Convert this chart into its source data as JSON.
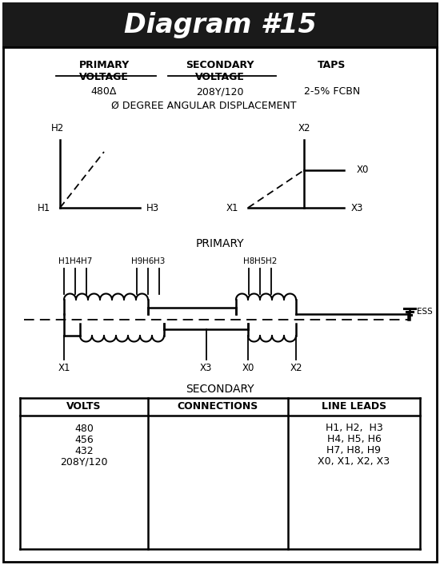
{
  "title": "Diagram #15",
  "title_bg": "#1a1a1a",
  "title_color": "#ffffff",
  "primary_voltage": "480Δ",
  "secondary_voltage": "208Y/120",
  "taps": "2-5% FCBN",
  "angular_displacement": "Ø DEGREE ANGULAR DISPLACEMENT",
  "bg_color": "#ffffff",
  "table_data": [
    [
      "480",
      "",
      "H1, H2,  H3"
    ],
    [
      "456",
      "",
      "H4, H5, H6"
    ],
    [
      "432",
      "",
      "H7, H8, H9"
    ],
    [
      "208Y/120",
      "",
      "X0, X1, X2, X3"
    ]
  ],
  "table_headers": [
    "VOLTS",
    "CONNECTIONS",
    "LINE LEADS"
  ]
}
